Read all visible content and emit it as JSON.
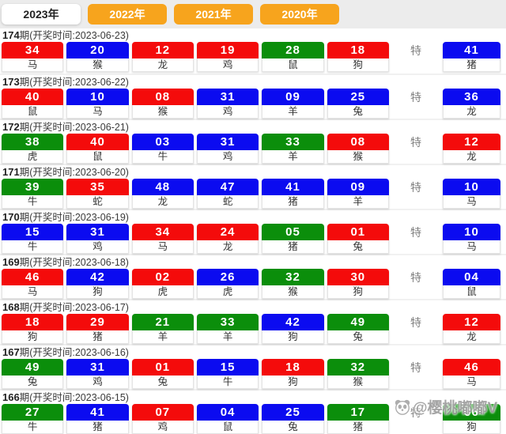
{
  "tabs": {
    "items": [
      {
        "label": "2023年",
        "active": true
      },
      {
        "label": "2022年",
        "active": false
      },
      {
        "label": "2021年",
        "active": false
      },
      {
        "label": "2020年",
        "active": false
      }
    ]
  },
  "colors": {
    "red": "#f40b0b",
    "blue": "#0b0bf0",
    "green": "#0b8e0b",
    "orange": "#f7a41d",
    "tabbar_bg": "#ececec"
  },
  "special_label": "特",
  "draws": [
    {
      "period": "174",
      "label_suffix": "期(开奖时间:2023-06-23)",
      "balls": [
        {
          "num": "34",
          "color": "red",
          "zodiac": "马"
        },
        {
          "num": "20",
          "color": "blue",
          "zodiac": "猴"
        },
        {
          "num": "12",
          "color": "red",
          "zodiac": "龙"
        },
        {
          "num": "19",
          "color": "red",
          "zodiac": "鸡"
        },
        {
          "num": "28",
          "color": "green",
          "zodiac": "鼠"
        },
        {
          "num": "18",
          "color": "red",
          "zodiac": "狗"
        }
      ],
      "special": {
        "num": "41",
        "color": "blue",
        "zodiac": "猪"
      }
    },
    {
      "period": "173",
      "label_suffix": "期(开奖时间:2023-06-22)",
      "balls": [
        {
          "num": "40",
          "color": "red",
          "zodiac": "鼠"
        },
        {
          "num": "10",
          "color": "blue",
          "zodiac": "马"
        },
        {
          "num": "08",
          "color": "red",
          "zodiac": "猴"
        },
        {
          "num": "31",
          "color": "blue",
          "zodiac": "鸡"
        },
        {
          "num": "09",
          "color": "blue",
          "zodiac": "羊"
        },
        {
          "num": "25",
          "color": "blue",
          "zodiac": "兔"
        }
      ],
      "special": {
        "num": "36",
        "color": "blue",
        "zodiac": "龙"
      }
    },
    {
      "period": "172",
      "label_suffix": "期(开奖时间:2023-06-21)",
      "balls": [
        {
          "num": "38",
          "color": "green",
          "zodiac": "虎"
        },
        {
          "num": "40",
          "color": "red",
          "zodiac": "鼠"
        },
        {
          "num": "03",
          "color": "blue",
          "zodiac": "牛"
        },
        {
          "num": "31",
          "color": "blue",
          "zodiac": "鸡"
        },
        {
          "num": "33",
          "color": "green",
          "zodiac": "羊"
        },
        {
          "num": "08",
          "color": "red",
          "zodiac": "猴"
        }
      ],
      "special": {
        "num": "12",
        "color": "red",
        "zodiac": "龙"
      }
    },
    {
      "period": "171",
      "label_suffix": "期(开奖时间:2023-06-20)",
      "balls": [
        {
          "num": "39",
          "color": "green",
          "zodiac": "牛"
        },
        {
          "num": "35",
          "color": "red",
          "zodiac": "蛇"
        },
        {
          "num": "48",
          "color": "blue",
          "zodiac": "龙"
        },
        {
          "num": "47",
          "color": "blue",
          "zodiac": "蛇"
        },
        {
          "num": "41",
          "color": "blue",
          "zodiac": "猪"
        },
        {
          "num": "09",
          "color": "blue",
          "zodiac": "羊"
        }
      ],
      "special": {
        "num": "10",
        "color": "blue",
        "zodiac": "马"
      }
    },
    {
      "period": "170",
      "label_suffix": "期(开奖时间:2023-06-19)",
      "balls": [
        {
          "num": "15",
          "color": "blue",
          "zodiac": "牛"
        },
        {
          "num": "31",
          "color": "blue",
          "zodiac": "鸡"
        },
        {
          "num": "34",
          "color": "red",
          "zodiac": "马"
        },
        {
          "num": "24",
          "color": "red",
          "zodiac": "龙"
        },
        {
          "num": "05",
          "color": "green",
          "zodiac": "猪"
        },
        {
          "num": "01",
          "color": "red",
          "zodiac": "兔"
        }
      ],
      "special": {
        "num": "10",
        "color": "blue",
        "zodiac": "马"
      }
    },
    {
      "period": "169",
      "label_suffix": "期(开奖时间:2023-06-18)",
      "balls": [
        {
          "num": "46",
          "color": "red",
          "zodiac": "马"
        },
        {
          "num": "42",
          "color": "blue",
          "zodiac": "狗"
        },
        {
          "num": "02",
          "color": "red",
          "zodiac": "虎"
        },
        {
          "num": "26",
          "color": "blue",
          "zodiac": "虎"
        },
        {
          "num": "32",
          "color": "green",
          "zodiac": "猴"
        },
        {
          "num": "30",
          "color": "red",
          "zodiac": "狗"
        }
      ],
      "special": {
        "num": "04",
        "color": "blue",
        "zodiac": "鼠"
      }
    },
    {
      "period": "168",
      "label_suffix": "期(开奖时间:2023-06-17)",
      "balls": [
        {
          "num": "18",
          "color": "red",
          "zodiac": "狗"
        },
        {
          "num": "29",
          "color": "red",
          "zodiac": "猪"
        },
        {
          "num": "21",
          "color": "green",
          "zodiac": "羊"
        },
        {
          "num": "33",
          "color": "green",
          "zodiac": "羊"
        },
        {
          "num": "42",
          "color": "blue",
          "zodiac": "狗"
        },
        {
          "num": "49",
          "color": "green",
          "zodiac": "兔"
        }
      ],
      "special": {
        "num": "12",
        "color": "red",
        "zodiac": "龙"
      }
    },
    {
      "period": "167",
      "label_suffix": "期(开奖时间:2023-06-16)",
      "balls": [
        {
          "num": "49",
          "color": "green",
          "zodiac": "兔"
        },
        {
          "num": "31",
          "color": "blue",
          "zodiac": "鸡"
        },
        {
          "num": "01",
          "color": "red",
          "zodiac": "兔"
        },
        {
          "num": "15",
          "color": "blue",
          "zodiac": "牛"
        },
        {
          "num": "18",
          "color": "red",
          "zodiac": "狗"
        },
        {
          "num": "32",
          "color": "green",
          "zodiac": "猴"
        }
      ],
      "special": {
        "num": "46",
        "color": "red",
        "zodiac": "马"
      }
    },
    {
      "period": "166",
      "label_suffix": "期(开奖时间:2023-06-15)",
      "balls": [
        {
          "num": "27",
          "color": "green",
          "zodiac": "牛"
        },
        {
          "num": "41",
          "color": "blue",
          "zodiac": "猪"
        },
        {
          "num": "07",
          "color": "red",
          "zodiac": "鸡"
        },
        {
          "num": "04",
          "color": "blue",
          "zodiac": "鼠"
        },
        {
          "num": "25",
          "color": "blue",
          "zodiac": "兔"
        },
        {
          "num": "17",
          "color": "green",
          "zodiac": "猪"
        }
      ],
      "special": {
        "num": "06",
        "color": "green",
        "zodiac": "狗"
      }
    }
  ],
  "watermark": {
    "icon": "panda-icon",
    "text": "@樱桃嘟嘟V"
  }
}
